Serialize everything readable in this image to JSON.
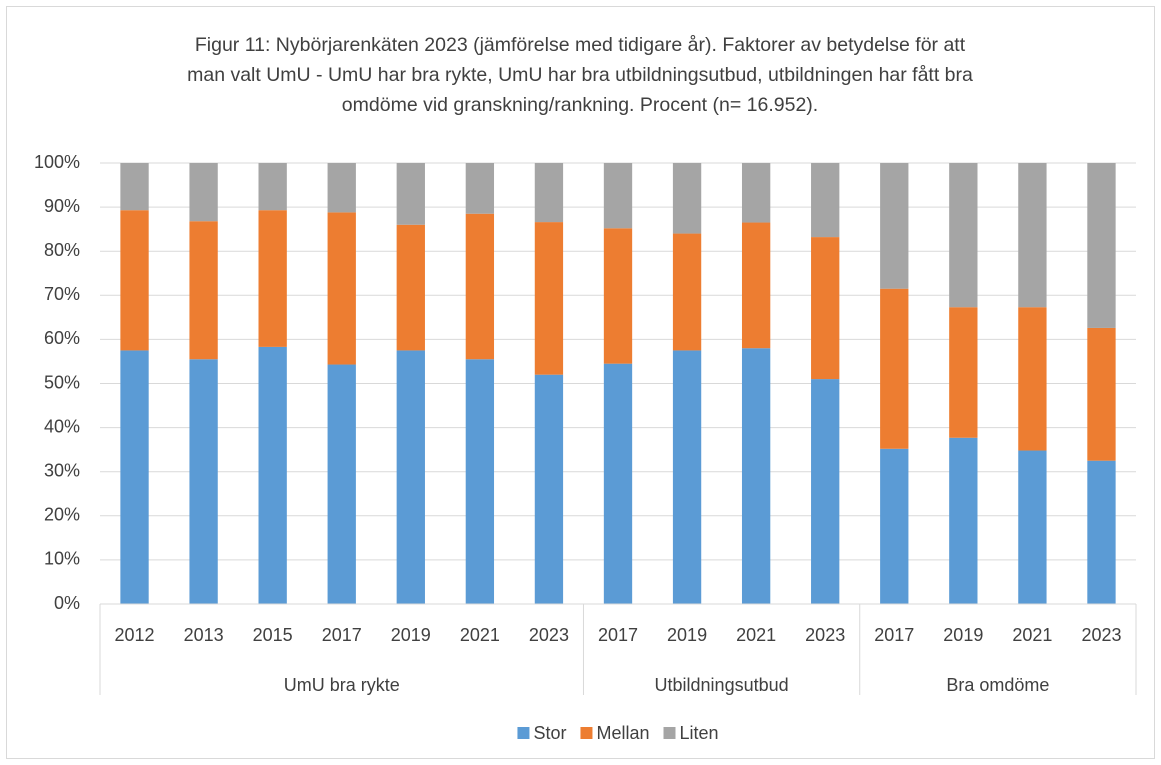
{
  "chart_data": {
    "type": "stacked_bar",
    "title": "Figur 11: Nybörjarenkäten 2023 (jämförelse med tidigare år). Faktorer av betydelse för att man valt UmU - UmU har bra rykte, UmU har bra utbildningsutbud, utbildningen har fått bra omdöme vid granskning/rankning. Procent (n= 16.952).",
    "groups": [
      {
        "name": "UmU bra rykte",
        "categories": [
          "2012",
          "2013",
          "2015",
          "2017",
          "2019",
          "2021",
          "2023"
        ]
      },
      {
        "name": "Utbildningsutbud",
        "categories": [
          "2017",
          "2019",
          "2021",
          "2023"
        ]
      },
      {
        "name": "Bra omdöme",
        "categories": [
          "2017",
          "2019",
          "2021",
          "2023"
        ]
      }
    ],
    "series": [
      {
        "name": "Stor",
        "color": "#5b9bd5",
        "values": [
          57.5,
          55.5,
          58.3,
          54.3,
          57.5,
          55.5,
          52.0,
          54.5,
          57.5,
          58.0,
          51.0,
          35.2,
          37.7,
          34.8,
          32.5
        ]
      },
      {
        "name": "Mellan",
        "color": "#ed7d31",
        "values": [
          31.8,
          31.3,
          31.0,
          34.5,
          28.5,
          33.0,
          34.6,
          30.7,
          26.5,
          28.5,
          32.2,
          36.3,
          29.6,
          32.5,
          30.1
        ]
      },
      {
        "name": "Liten",
        "color": "#a5a5a5",
        "values": [
          10.7,
          13.2,
          10.7,
          11.2,
          14.0,
          11.5,
          13.4,
          14.8,
          16.0,
          13.5,
          16.8,
          28.5,
          32.7,
          32.7,
          37.4
        ]
      }
    ],
    "ylim": [
      0,
      100
    ],
    "yticks": [
      {
        "value": 0,
        "label": "0%"
      },
      {
        "value": 10,
        "label": "10%"
      },
      {
        "value": 20,
        "label": "20%"
      },
      {
        "value": 30,
        "label": "30%"
      },
      {
        "value": 40,
        "label": "40%"
      },
      {
        "value": 50,
        "label": "50%"
      },
      {
        "value": 60,
        "label": "60%"
      },
      {
        "value": 70,
        "label": "70%"
      },
      {
        "value": 80,
        "label": "80%"
      },
      {
        "value": 90,
        "label": "90%"
      },
      {
        "value": 100,
        "label": "100%"
      }
    ],
    "grid": true,
    "legend": "bottom"
  }
}
